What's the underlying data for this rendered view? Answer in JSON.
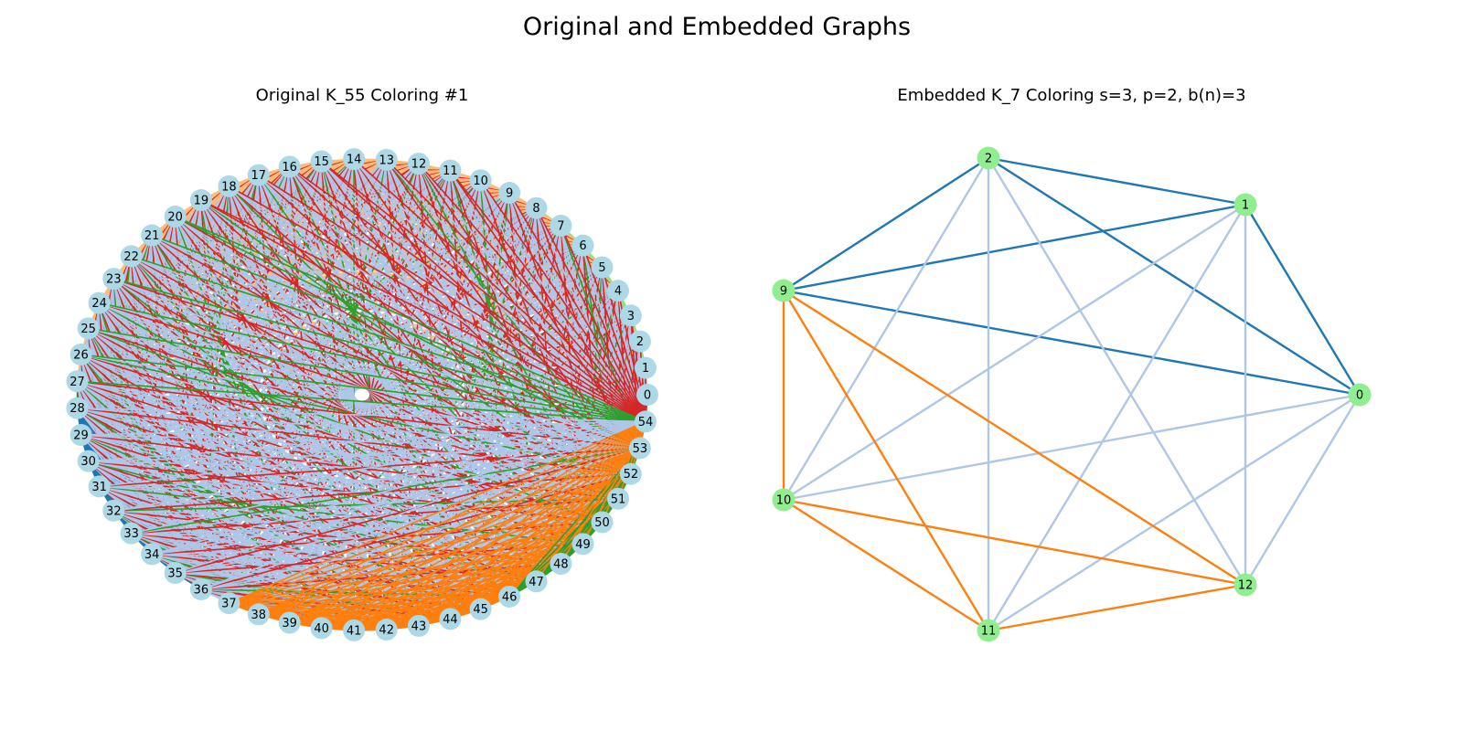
{
  "figure": {
    "title": "Original and Embedded Graphs"
  },
  "left_panel": {
    "title": "Original K_55 Coloring #1",
    "node_count": 55,
    "node_color": "#add8e6",
    "edge_colors": [
      "#ffbb78",
      "#d62728",
      "#2ca02c",
      "#98df8a",
      "#aec7e8",
      "#1f77b4",
      "#ff7f0e"
    ]
  },
  "right_panel": {
    "title": "Embedded K_7 Coloring s=3, p=2, b(n)=3",
    "node_color": "#90ee90",
    "nodes": [
      "0",
      "1",
      "2",
      "9",
      "10",
      "11",
      "12"
    ],
    "edges": [
      {
        "a": "2",
        "b": "1",
        "color": "#1f77b4"
      },
      {
        "a": "2",
        "b": "0",
        "color": "#1f77b4"
      },
      {
        "a": "2",
        "b": "9",
        "color": "#1f77b4"
      },
      {
        "a": "1",
        "b": "9",
        "color": "#1f77b4"
      },
      {
        "a": "1",
        "b": "0",
        "color": "#1f77b4"
      },
      {
        "a": "9",
        "b": "0",
        "color": "#1f77b4"
      },
      {
        "a": "2",
        "b": "10",
        "color": "#aec7e8"
      },
      {
        "a": "2",
        "b": "11",
        "color": "#aec7e8"
      },
      {
        "a": "2",
        "b": "12",
        "color": "#aec7e8"
      },
      {
        "a": "1",
        "b": "10",
        "color": "#aec7e8"
      },
      {
        "a": "1",
        "b": "11",
        "color": "#aec7e8"
      },
      {
        "a": "1",
        "b": "12",
        "color": "#aec7e8"
      },
      {
        "a": "0",
        "b": "10",
        "color": "#aec7e8"
      },
      {
        "a": "0",
        "b": "11",
        "color": "#aec7e8"
      },
      {
        "a": "0",
        "b": "12",
        "color": "#aec7e8"
      },
      {
        "a": "9",
        "b": "10",
        "color": "#ff7f0e"
      },
      {
        "a": "9",
        "b": "11",
        "color": "#ff7f0e"
      },
      {
        "a": "9",
        "b": "12",
        "color": "#ff7f0e"
      },
      {
        "a": "10",
        "b": "11",
        "color": "#ff7f0e"
      },
      {
        "a": "10",
        "b": "12",
        "color": "#ff7f0e"
      },
      {
        "a": "11",
        "b": "12",
        "color": "#ff7f0e"
      }
    ]
  }
}
